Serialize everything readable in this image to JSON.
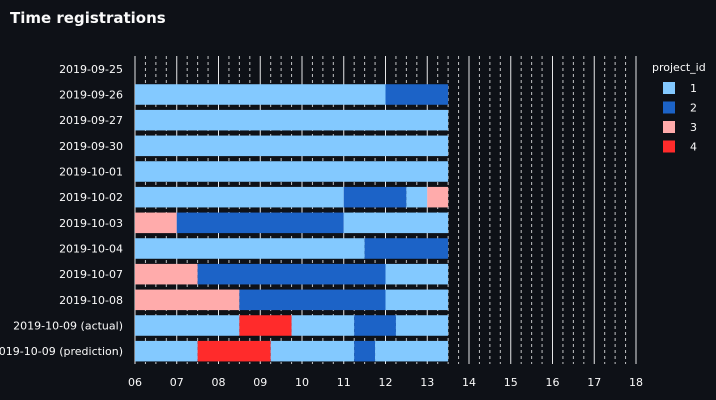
{
  "chart_data": {
    "type": "bar",
    "orientation": "horizontal-stacked-timeline",
    "title": "Time registrations",
    "xlabel": "",
    "ylabel": "",
    "xlim": [
      6,
      18
    ],
    "x_ticks": [
      6,
      7,
      8,
      9,
      10,
      11,
      12,
      13,
      14,
      15,
      16,
      17,
      18
    ],
    "x_tick_labels": [
      "06",
      "07",
      "08",
      "09",
      "10",
      "11",
      "12",
      "13",
      "14",
      "15",
      "16",
      "17",
      "18"
    ],
    "grid": true,
    "legend_position": "right",
    "legend_title": "project_id",
    "colors": {
      "1": "#83c9ff",
      "2": "#1c63c7",
      "3": "#ffabab",
      "4": "#ff2b2b"
    },
    "projects": [
      "1",
      "2",
      "3",
      "4"
    ],
    "categories": [
      "2019-09-25",
      "2019-09-26",
      "2019-09-27",
      "2019-09-30",
      "2019-10-01",
      "2019-10-02",
      "2019-10-03",
      "2019-10-04",
      "2019-10-07",
      "2019-10-08",
      "2019-10-09 (actual)",
      "2019-10-09 (prediction)"
    ],
    "segments": [
      [],
      [
        {
          "start": 6,
          "end": 12,
          "project": "1"
        },
        {
          "start": 12,
          "end": 13.5,
          "project": "2"
        }
      ],
      [
        {
          "start": 6,
          "end": 13.5,
          "project": "1"
        }
      ],
      [
        {
          "start": 6,
          "end": 13.5,
          "project": "1"
        }
      ],
      [
        {
          "start": 6,
          "end": 13.5,
          "project": "1"
        }
      ],
      [
        {
          "start": 6,
          "end": 11,
          "project": "1"
        },
        {
          "start": 11,
          "end": 12.5,
          "project": "2"
        },
        {
          "start": 12.5,
          "end": 13,
          "project": "1"
        },
        {
          "start": 13,
          "end": 13.5,
          "project": "3"
        }
      ],
      [
        {
          "start": 6,
          "end": 7,
          "project": "3"
        },
        {
          "start": 7,
          "end": 11,
          "project": "2"
        },
        {
          "start": 11,
          "end": 13.5,
          "project": "1"
        }
      ],
      [
        {
          "start": 6,
          "end": 11.5,
          "project": "1"
        },
        {
          "start": 11.5,
          "end": 13.5,
          "project": "2"
        }
      ],
      [
        {
          "start": 6,
          "end": 7.5,
          "project": "3"
        },
        {
          "start": 7.5,
          "end": 12,
          "project": "2"
        },
        {
          "start": 12,
          "end": 13.5,
          "project": "1"
        }
      ],
      [
        {
          "start": 6,
          "end": 8.5,
          "project": "3"
        },
        {
          "start": 8.5,
          "end": 12,
          "project": "2"
        },
        {
          "start": 12,
          "end": 13.5,
          "project": "1"
        }
      ],
      [
        {
          "start": 6,
          "end": 8.5,
          "project": "1"
        },
        {
          "start": 8.5,
          "end": 9.75,
          "project": "4"
        },
        {
          "start": 9.75,
          "end": 11.25,
          "project": "1"
        },
        {
          "start": 11.25,
          "end": 12.25,
          "project": "2"
        },
        {
          "start": 12.25,
          "end": 13.5,
          "project": "1"
        }
      ],
      [
        {
          "start": 6,
          "end": 7.5,
          "project": "1"
        },
        {
          "start": 7.5,
          "end": 9.25,
          "project": "4"
        },
        {
          "start": 9.25,
          "end": 11.25,
          "project": "1"
        },
        {
          "start": 11.25,
          "end": 11.75,
          "project": "2"
        },
        {
          "start": 11.75,
          "end": 13.5,
          "project": "1"
        }
      ]
    ]
  }
}
